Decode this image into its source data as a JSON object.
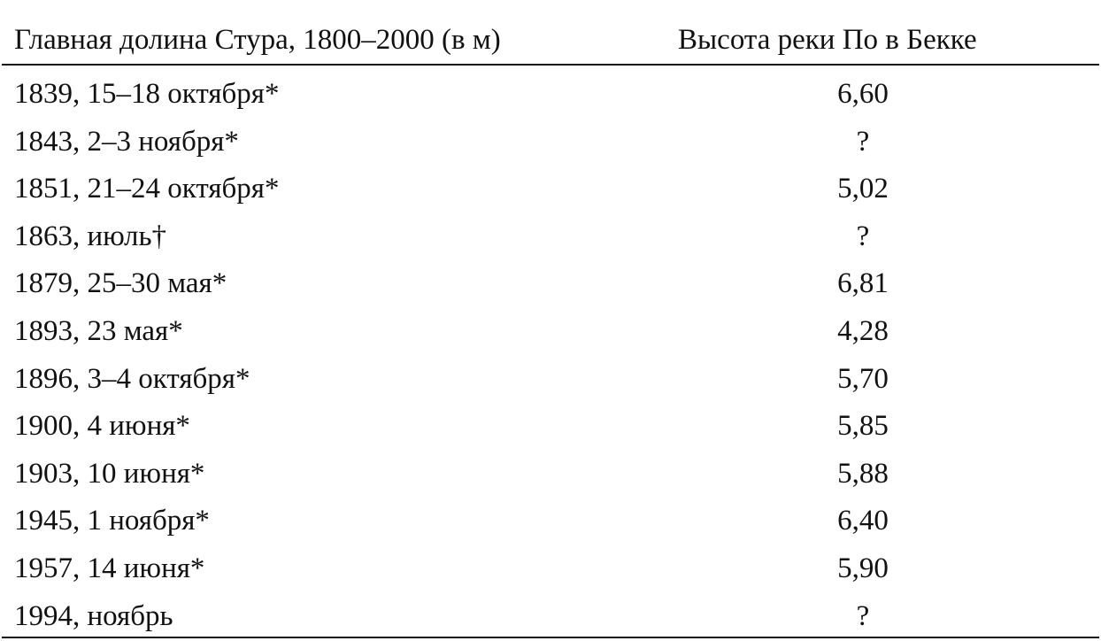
{
  "table": {
    "header": [
      "Главная долина Стура, 1800–2000 (в м)",
      "Высота реки По в Бекке"
    ],
    "rows": [
      [
        "1839, 15–18 октября*",
        "6,60"
      ],
      [
        "1843, 2–3 ноября*",
        "?"
      ],
      [
        "1851, 21–24 октября*",
        "5,02"
      ],
      [
        "1863, июль†",
        "?"
      ],
      [
        "1879, 25–30 мая*",
        "6,81"
      ],
      [
        "1893, 23 мая*",
        "4,28"
      ],
      [
        "1896, 3–4 октября*",
        "5,70"
      ],
      [
        "1900, 4 июня*",
        "5,85"
      ],
      [
        "1903, 10 июня*",
        "5,88"
      ],
      [
        "1945, 1 ноября*",
        "6,40"
      ],
      [
        "1957, 14 июня*",
        "5,90"
      ],
      [
        "1994, ноябрь",
        "?"
      ]
    ]
  }
}
